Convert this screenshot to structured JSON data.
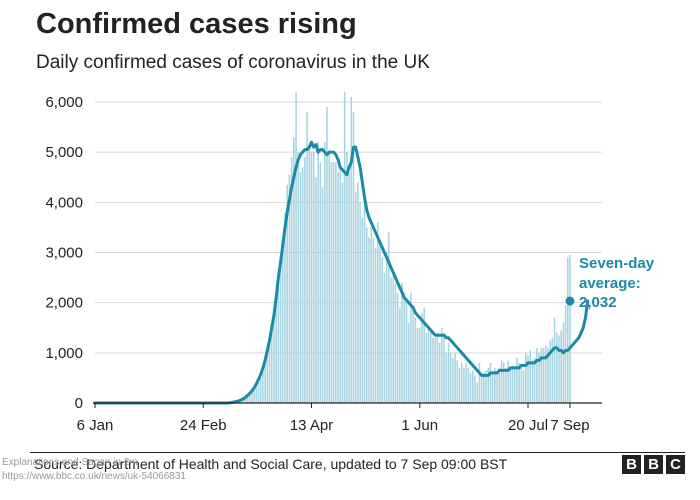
{
  "chart_data": {
    "type": "bar",
    "title": "Confirmed cases rising",
    "subtitle": "Daily confirmed cases of coronavirus in the UK",
    "xlabel": "",
    "ylabel": "",
    "ylim": [
      0,
      6000
    ],
    "yticks": [
      0,
      1000,
      2000,
      3000,
      4000,
      5000,
      6000
    ],
    "ytick_labels": [
      "0",
      "1,000",
      "2,000",
      "3,000",
      "4,000",
      "5,000",
      "6,000"
    ],
    "xticks": [
      "6 Jan",
      "24 Feb",
      "13 Apr",
      "1 Jun",
      "20 Jul",
      "7 Sep"
    ],
    "grid": true,
    "series": [
      {
        "name": "Daily confirmed cases",
        "type": "bar",
        "color": "#a7d4e0",
        "x_start": "6 Jan",
        "values": [
          0,
          0,
          0,
          0,
          0,
          0,
          0,
          0,
          0,
          0,
          0,
          0,
          0,
          0,
          0,
          0,
          0,
          0,
          0,
          0,
          0,
          0,
          0,
          0,
          0,
          0,
          0,
          0,
          0,
          0,
          0,
          0,
          0,
          0,
          0,
          0,
          0,
          0,
          0,
          0,
          0,
          0,
          0,
          0,
          0,
          0,
          0,
          0,
          0,
          0,
          0,
          0,
          0,
          0,
          0,
          0,
          0,
          0,
          0,
          0,
          10,
          10,
          20,
          30,
          40,
          50,
          60,
          80,
          100,
          130,
          160,
          200,
          250,
          330,
          410,
          500,
          650,
          800,
          1050,
          1300,
          1450,
          1700,
          2050,
          2450,
          2650,
          3050,
          3800,
          4350,
          4550,
          4900,
          5300,
          6200,
          5000,
          4600,
          4700,
          4900,
          5800,
          5100,
          5000,
          5000,
          4500,
          5200,
          4800,
          4300,
          5200,
          5900,
          5000,
          4800,
          4800,
          4800,
          4600,
          4700,
          4400,
          6200,
          5000,
          4600,
          6100,
          5800,
          4200,
          4400,
          4000,
          3700,
          4200,
          3500,
          3300,
          3500,
          3300,
          3100,
          3600,
          3200,
          2900,
          2600,
          3000,
          3400,
          2500,
          2600,
          2400,
          2200,
          1900,
          2400,
          2200,
          2100,
          1600,
          2200,
          1900,
          1700,
          1500,
          1500,
          1800,
          1900,
          1400,
          1500,
          1400,
          1300,
          1300,
          1400,
          1200,
          1500,
          1400,
          1000,
          1200,
          1000,
          900,
          1000,
          850,
          700,
          800,
          700,
          800,
          700,
          600,
          650,
          550,
          400,
          800,
          600,
          600,
          650,
          700,
          800,
          600,
          700,
          600,
          700,
          850,
          800,
          700,
          850,
          700,
          750,
          700,
          900,
          800,
          700,
          650,
          1000,
          950,
          1050,
          850,
          900,
          1100,
          1000,
          1100,
          1100,
          1150,
          1100,
          1250,
          1300,
          1700,
          1400,
          1350,
          1450,
          1600,
          1950,
          2900,
          2950
        ]
      },
      {
        "name": "Seven-day average",
        "type": "line",
        "color": "#1b8aa6",
        "x_start": "6 Jan",
        "values": [
          0,
          0,
          0,
          0,
          0,
          0,
          0,
          0,
          0,
          0,
          0,
          0,
          0,
          0,
          0,
          0,
          0,
          0,
          0,
          0,
          0,
          0,
          0,
          0,
          0,
          0,
          0,
          0,
          0,
          0,
          0,
          0,
          0,
          0,
          0,
          0,
          0,
          0,
          0,
          0,
          0,
          0,
          0,
          0,
          0,
          0,
          0,
          0,
          0,
          0,
          0,
          0,
          0,
          0,
          0,
          0,
          0,
          0,
          0,
          0,
          0,
          5,
          10,
          20,
          30,
          40,
          60,
          80,
          110,
          150,
          190,
          240,
          300,
          380,
          470,
          570,
          700,
          850,
          1050,
          1250,
          1500,
          1750,
          2100,
          2500,
          2800,
          3150,
          3500,
          3800,
          4050,
          4300,
          4500,
          4700,
          4850,
          4950,
          5000,
          5050,
          5050,
          5100,
          5200,
          5100,
          5150,
          5000,
          5050,
          5050,
          5000,
          4950,
          5000,
          5000,
          5000,
          4950,
          4850,
          4700,
          4650,
          4600,
          4550,
          4700,
          4800,
          5100,
          5100,
          4900,
          4700,
          4400,
          4100,
          3850,
          3700,
          3600,
          3500,
          3400,
          3300,
          3200,
          3100,
          3000,
          2900,
          2800,
          2700,
          2600,
          2500,
          2400,
          2300,
          2200,
          2100,
          2050,
          2000,
          1950,
          1900,
          1800,
          1750,
          1700,
          1650,
          1600,
          1550,
          1500,
          1450,
          1400,
          1350,
          1350,
          1350,
          1350,
          1350,
          1300,
          1300,
          1250,
          1200,
          1150,
          1100,
          1050,
          1000,
          950,
          900,
          850,
          800,
          750,
          700,
          650,
          600,
          550,
          550,
          550,
          550,
          600,
          600,
          600,
          600,
          650,
          650,
          650,
          650,
          650,
          700,
          700,
          700,
          700,
          700,
          750,
          750,
          750,
          800,
          800,
          800,
          800,
          850,
          850,
          900,
          900,
          900,
          950,
          1000,
          1050,
          1100,
          1100,
          1050,
          1050,
          1000,
          1050,
          1050,
          1100,
          1150,
          1200,
          1250,
          1300,
          1400,
          1500,
          1700,
          2032
        ]
      }
    ],
    "annotation": {
      "lines": [
        "Seven-day",
        "average:",
        "2,032"
      ],
      "value": 2032
    },
    "source": "Source: Department of Health and Social Care, updated to 7 Sep 09:00 BST",
    "watermark": [
      "Explanations and Sagan in 2m",
      "https://www.bbc.co.uk/news/uk-54066831"
    ],
    "logo_letters": [
      "B",
      "B",
      "C"
    ]
  }
}
